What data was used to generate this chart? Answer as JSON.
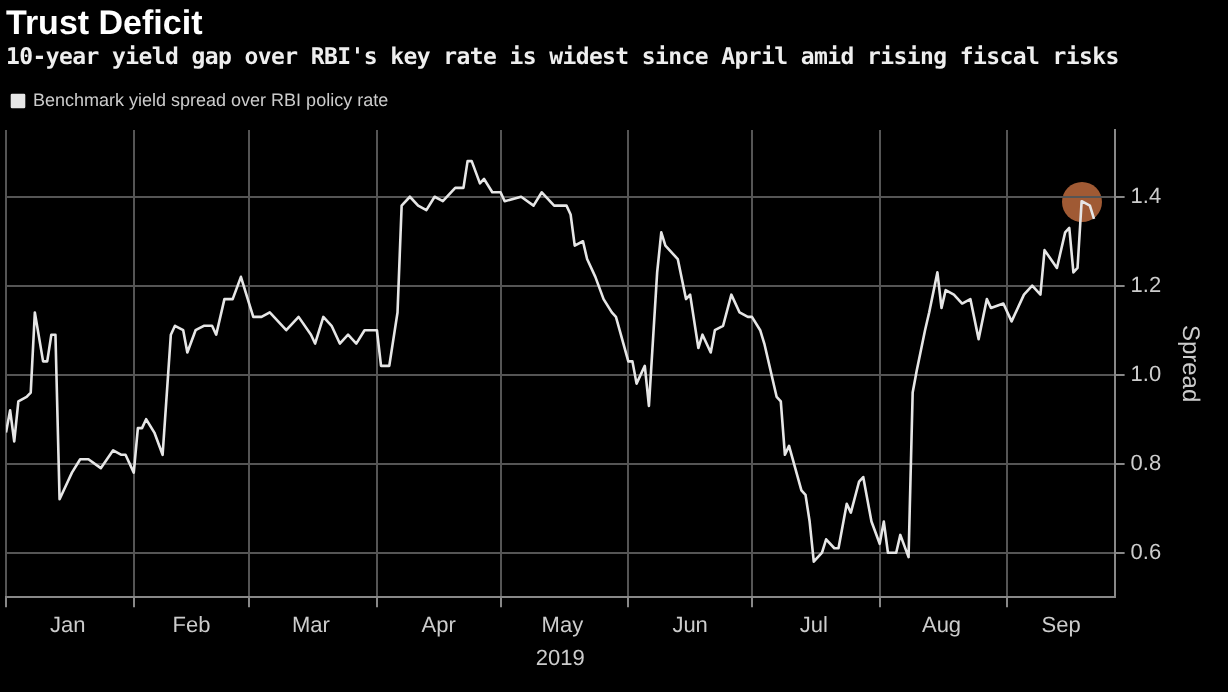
{
  "chart_data": {
    "type": "line",
    "title": "Trust Deficit",
    "subtitle": "10-year yield gap over RBI's key rate is widest since April amid rising fiscal risks",
    "xlabel": "2019",
    "y2label": "Spread",
    "legend": "top left",
    "grid": true,
    "marker": "none",
    "line_style": "solid",
    "xlim": [
      "2019-01-01",
      "2019-09-27"
    ],
    "xticks": [
      {
        "value": "2019-01-01",
        "label": null
      },
      {
        "value": "2019-01-16",
        "label": "Jan"
      },
      {
        "value": "2019-02-01",
        "label": null
      },
      {
        "value": "2019-02-15",
        "label": "Feb"
      },
      {
        "value": "2019-03-01",
        "label": null
      },
      {
        "value": "2019-03-16",
        "label": "Mar"
      },
      {
        "value": "2019-04-01",
        "label": null
      },
      {
        "value": "2019-04-16",
        "label": "Apr"
      },
      {
        "value": "2019-05-01",
        "label": null
      },
      {
        "value": "2019-05-16",
        "label": "May"
      },
      {
        "value": "2019-06-01",
        "label": null
      },
      {
        "value": "2019-06-16",
        "label": "Jun"
      },
      {
        "value": "2019-07-01",
        "label": null
      },
      {
        "value": "2019-07-16",
        "label": "Jul"
      },
      {
        "value": "2019-08-01",
        "label": null
      },
      {
        "value": "2019-08-16",
        "label": "Aug"
      },
      {
        "value": "2019-09-01",
        "label": null
      },
      {
        "value": "2019-09-14",
        "label": "Sep"
      }
    ],
    "y2lim": [
      0.5,
      1.55
    ],
    "y2ticks": [
      {
        "value": 0.6,
        "label": "0.6"
      },
      {
        "value": 0.8,
        "label": "0.8"
      },
      {
        "value": 1.0,
        "label": "1.0"
      },
      {
        "value": 1.2,
        "label": "1.2"
      },
      {
        "value": 1.4,
        "label": "1.4"
      }
    ],
    "series": [
      {
        "name": "Benchmark yield spread over RBI policy rate",
        "color": "#e6e6e6",
        "axis": "y2",
        "x": [
          "2019-01-01",
          "2019-01-02",
          "2019-01-03",
          "2019-01-04",
          "2019-01-06",
          "2019-01-07",
          "2019-01-08",
          "2019-01-10",
          "2019-01-11",
          "2019-01-12",
          "2019-01-13",
          "2019-01-14",
          "2019-01-16",
          "2019-01-17",
          "2019-01-19",
          "2019-01-21",
          "2019-01-24",
          "2019-01-27",
          "2019-01-29",
          "2019-01-30",
          "2019-02-01",
          "2019-02-02",
          "2019-02-03",
          "2019-02-04",
          "2019-02-06",
          "2019-02-08",
          "2019-02-10",
          "2019-02-11",
          "2019-02-13",
          "2019-02-14",
          "2019-02-16",
          "2019-02-18",
          "2019-02-20",
          "2019-02-21",
          "2019-02-23",
          "2019-02-25",
          "2019-02-27",
          "2019-03-01",
          "2019-03-02",
          "2019-03-04",
          "2019-03-06",
          "2019-03-10",
          "2019-03-13",
          "2019-03-16",
          "2019-03-17",
          "2019-03-19",
          "2019-03-21",
          "2019-03-23",
          "2019-03-25",
          "2019-03-27",
          "2019-03-29",
          "2019-04-01",
          "2019-04-02",
          "2019-04-04",
          "2019-04-06",
          "2019-04-07",
          "2019-04-09",
          "2019-04-11",
          "2019-04-13",
          "2019-04-15",
          "2019-04-17",
          "2019-04-20",
          "2019-04-22",
          "2019-04-23",
          "2019-04-24",
          "2019-04-26",
          "2019-04-27",
          "2019-04-29",
          "2019-05-01",
          "2019-05-02",
          "2019-05-06",
          "2019-05-09",
          "2019-05-11",
          "2019-05-14",
          "2019-05-17",
          "2019-05-18",
          "2019-05-19",
          "2019-05-21",
          "2019-05-22",
          "2019-05-24",
          "2019-05-26",
          "2019-05-28",
          "2019-05-29",
          "2019-06-01",
          "2019-06-02",
          "2019-06-03",
          "2019-06-05",
          "2019-06-06",
          "2019-06-08",
          "2019-06-09",
          "2019-06-10",
          "2019-06-12",
          "2019-06-13",
          "2019-06-15",
          "2019-06-16",
          "2019-06-18",
          "2019-06-19",
          "2019-06-21",
          "2019-06-22",
          "2019-06-24",
          "2019-06-26",
          "2019-06-28",
          "2019-06-30",
          "2019-07-01",
          "2019-07-03",
          "2019-07-04",
          "2019-07-07",
          "2019-07-08",
          "2019-07-09",
          "2019-07-10",
          "2019-07-13",
          "2019-07-14",
          "2019-07-15",
          "2019-07-16",
          "2019-07-18",
          "2019-07-19",
          "2019-07-21",
          "2019-07-22",
          "2019-07-24",
          "2019-07-25",
          "2019-07-27",
          "2019-07-28",
          "2019-07-30",
          "2019-08-01",
          "2019-08-02",
          "2019-08-03",
          "2019-08-05",
          "2019-08-06",
          "2019-08-08",
          "2019-08-09",
          "2019-08-10",
          "2019-08-12",
          "2019-08-13",
          "2019-08-15",
          "2019-08-16",
          "2019-08-17",
          "2019-08-19",
          "2019-08-21",
          "2019-08-23",
          "2019-08-25",
          "2019-08-27",
          "2019-08-28",
          "2019-08-31",
          "2019-09-02",
          "2019-09-05",
          "2019-09-07",
          "2019-09-09",
          "2019-09-10",
          "2019-09-13",
          "2019-09-15",
          "2019-09-16",
          "2019-09-17",
          "2019-09-18",
          "2019-09-19",
          "2019-09-21",
          "2019-09-22"
        ],
        "values": [
          0.87,
          0.92,
          0.85,
          0.94,
          0.95,
          0.96,
          1.14,
          1.03,
          1.03,
          1.09,
          1.09,
          0.72,
          0.76,
          0.78,
          0.81,
          0.81,
          0.79,
          0.83,
          0.82,
          0.82,
          0.78,
          0.88,
          0.88,
          0.9,
          0.87,
          0.82,
          1.09,
          1.11,
          1.1,
          1.05,
          1.1,
          1.11,
          1.11,
          1.09,
          1.17,
          1.17,
          1.22,
          1.16,
          1.13,
          1.13,
          1.14,
          1.1,
          1.13,
          1.09,
          1.07,
          1.13,
          1.11,
          1.07,
          1.09,
          1.07,
          1.1,
          1.1,
          1.02,
          1.02,
          1.14,
          1.38,
          1.4,
          1.38,
          1.37,
          1.4,
          1.39,
          1.42,
          1.42,
          1.48,
          1.48,
          1.43,
          1.44,
          1.41,
          1.41,
          1.39,
          1.4,
          1.38,
          1.41,
          1.38,
          1.38,
          1.36,
          1.29,
          1.3,
          1.26,
          1.22,
          1.17,
          1.14,
          1.13,
          1.03,
          1.03,
          0.98,
          1.02,
          0.93,
          1.23,
          1.32,
          1.29,
          1.27,
          1.26,
          1.17,
          1.18,
          1.06,
          1.09,
          1.05,
          1.1,
          1.11,
          1.18,
          1.14,
          1.13,
          1.13,
          1.1,
          1.07,
          0.95,
          0.94,
          0.82,
          0.84,
          0.74,
          0.73,
          0.67,
          0.58,
          0.6,
          0.63,
          0.61,
          0.61,
          0.71,
          0.69,
          0.76,
          0.77,
          0.67,
          0.62,
          0.67,
          0.6,
          0.6,
          0.64,
          0.59,
          0.96,
          1.01,
          1.1,
          1.14,
          1.23,
          1.15,
          1.19,
          1.18,
          1.16,
          1.17,
          1.08,
          1.17,
          1.15,
          1.16,
          1.12,
          1.18,
          1.2,
          1.18,
          1.28,
          1.24,
          1.32,
          1.33,
          1.23,
          1.24,
          1.39,
          1.38,
          1.35
        ]
      }
    ]
  }
}
